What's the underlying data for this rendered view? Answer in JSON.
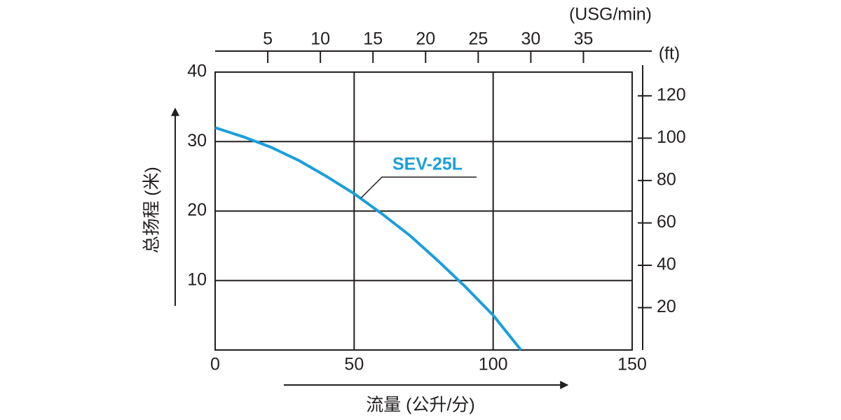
{
  "chart_data": {
    "type": "line",
    "x_axis_label": "流量 (公升/分)",
    "y_axis_label": "总扬程 (米)",
    "x2_axis_label": "(USG/min)",
    "y2_axis_label": "(ft)",
    "x": [
      0,
      10,
      20,
      30,
      40,
      50,
      60,
      70,
      80,
      90,
      100,
      110
    ],
    "series": [
      {
        "name": "SEV-25L",
        "color": "#1a9fdb",
        "values": [
          32,
          30.7,
          29.2,
          27.3,
          25.0,
          22.5,
          19.6,
          16.5,
          12.9,
          9.1,
          5.0,
          0
        ]
      }
    ],
    "xlim": [
      0,
      150
    ],
    "xticks": [
      0,
      50,
      100,
      150
    ],
    "ylim": [
      0,
      40
    ],
    "yticks": [
      10,
      20,
      30,
      40
    ],
    "x2lim": [
      0,
      39.63
    ],
    "x2ticks": [
      5,
      10,
      15,
      20,
      25,
      30,
      35
    ],
    "y2lim": [
      0,
      131.2
    ],
    "y2ticks": [
      20,
      40,
      60,
      80,
      100,
      120
    ],
    "grid": true
  }
}
